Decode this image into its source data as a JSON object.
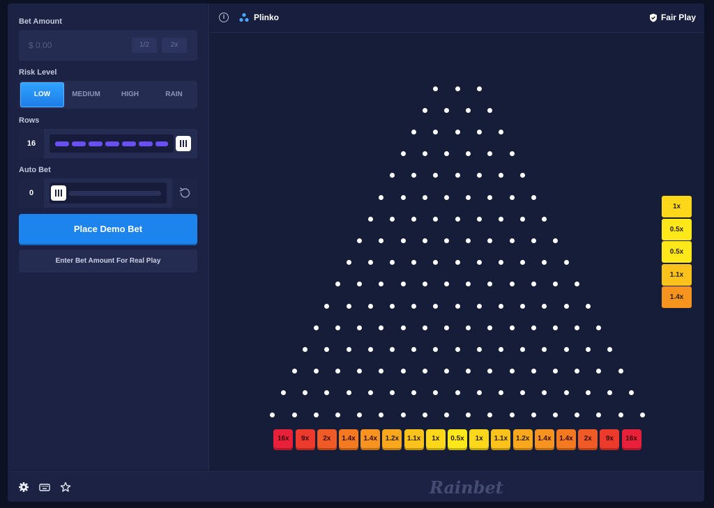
{
  "sidebar": {
    "bet_amount_label": "Bet Amount",
    "bet_amount_placeholder": "$ 0.00",
    "half_label": "1/2",
    "double_label": "2x",
    "risk_label": "Risk Level",
    "risk_options": [
      "LOW",
      "MEDIUM",
      "HIGH",
      "RAIN"
    ],
    "risk_selected": "LOW",
    "rows_label": "Rows",
    "rows_value": "16",
    "autobet_label": "Auto Bet",
    "autobet_value": "0",
    "place_button": "Place Demo Bet",
    "real_play_button": "Enter Bet Amount For Real Play"
  },
  "header": {
    "game_title": "Plinko",
    "fair_play": "Fair Play"
  },
  "board": {
    "rows": 16,
    "buckets": [
      "16x",
      "9x",
      "2x",
      "1.4x",
      "1.4x",
      "1.2x",
      "1.1x",
      "1x",
      "0.5x",
      "1x",
      "1.1x",
      "1.2x",
      "1.4x",
      "1.4x",
      "2x",
      "9x",
      "16x"
    ],
    "bucket_colors": [
      "#e8203a",
      "#ec3a2c",
      "#f05a26",
      "#f47a22",
      "#f7931f",
      "#f9a81d",
      "#fbc21b",
      "#fdd81a",
      "#ffe819",
      "#fdd81a",
      "#fbc21b",
      "#f9a81d",
      "#f7931f",
      "#f47a22",
      "#f05a26",
      "#ec3a2c",
      "#e8203a"
    ]
  },
  "history": [
    {
      "label": "1x",
      "color": "#fdd81a"
    },
    {
      "label": "0.5x",
      "color": "#ffe819"
    },
    {
      "label": "0.5x",
      "color": "#ffe819"
    },
    {
      "label": "1.1x",
      "color": "#fbc21b"
    },
    {
      "label": "1.4x",
      "color": "#f7931f"
    }
  ],
  "footer": {
    "brand": "Rainbet",
    "icons": [
      "gear-icon",
      "keyboard-icon",
      "star-icon"
    ]
  }
}
